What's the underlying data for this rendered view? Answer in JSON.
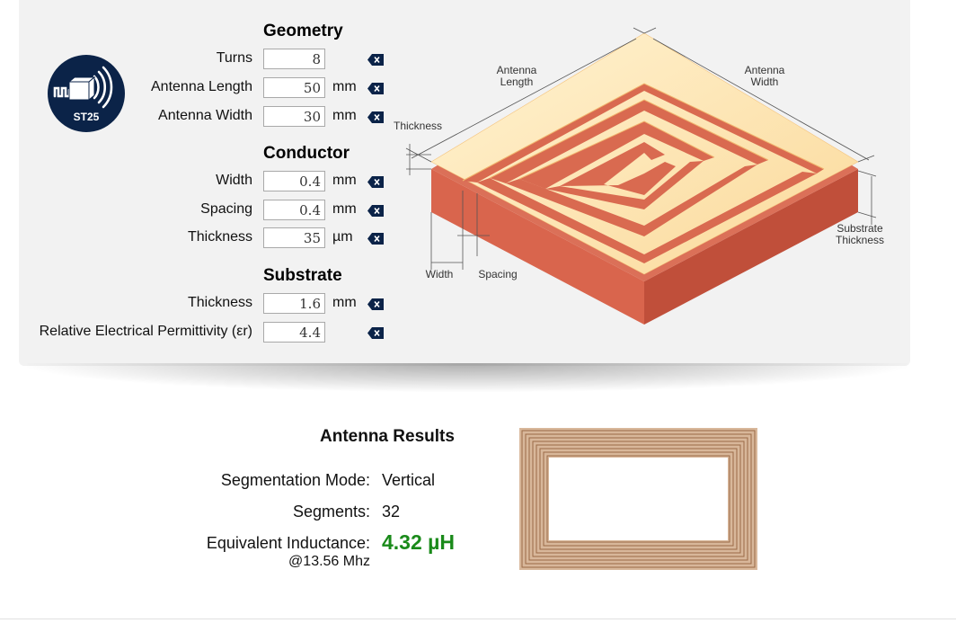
{
  "logo": {
    "text": "ST25",
    "icon": "nfc-antenna-icon"
  },
  "geometry": {
    "title": "Geometry",
    "turns": {
      "label": "Turns",
      "value": "8",
      "unit": ""
    },
    "antenna_length": {
      "label": "Antenna Length",
      "value": "50",
      "unit": "mm"
    },
    "antenna_width": {
      "label": "Antenna Width",
      "value": "30",
      "unit": "mm"
    }
  },
  "conductor": {
    "title": "Conductor",
    "width": {
      "label": "Width",
      "value": "0.4",
      "unit": "mm"
    },
    "spacing": {
      "label": "Spacing",
      "value": "0.4",
      "unit": "mm"
    },
    "thickness": {
      "label": "Thickness",
      "value": "35",
      "unit": "µm"
    }
  },
  "substrate": {
    "title": "Substrate",
    "thickness": {
      "label": "Thickness",
      "value": "1.6",
      "unit": "mm"
    },
    "permittivity": {
      "label": "Relative Electrical Permittivity (εr)",
      "value": "4.4",
      "unit": ""
    }
  },
  "diagram": {
    "antenna_length_l1": "Antenna",
    "antenna_length_l2": "Length",
    "antenna_width_l1": "Antenna",
    "antenna_width_l2": "Width",
    "thickness": "Thickness",
    "substrate_l1": "Substrate",
    "substrate_l2": "Thickness",
    "width": "Width",
    "spacing": "Spacing"
  },
  "results": {
    "title": "Antenna Results",
    "segmentation_mode_label": "Segmentation Mode:",
    "segmentation_mode_value": "Vertical",
    "segments_label": "Segments:",
    "segments_value": "32",
    "inductance_label": "Equivalent Inductance:",
    "inductance_sub": "@13.56 Mhz",
    "inductance_value": "4.32 µH"
  },
  "colors": {
    "logo_bg": "#0b2348",
    "clear_icon_bg": "#0b2348",
    "inductance": "#1a8a1a",
    "copper_top": "#fde6b0",
    "substrate": "#d4624a"
  }
}
